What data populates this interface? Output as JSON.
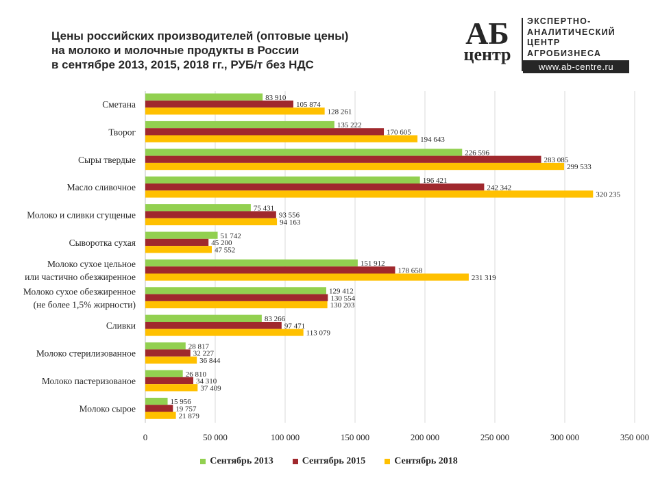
{
  "title_lines": [
    "Цены российских производителей (оптовые цены)",
    "на молоко и молочные продукты в России",
    "в сентябре 2013, 2015, 2018 гг., РУБ/т без НДС"
  ],
  "logo": {
    "mark_top": "АБ",
    "mark_bottom": "центр",
    "text_lines": [
      "ЭКСПЕРТНО-",
      "АНАЛИТИЧЕСКИЙ",
      "ЦЕНТР",
      "АГРОБИЗНЕСА"
    ],
    "url": "www.ab-centre.ru"
  },
  "chart_data": {
    "type": "bar",
    "orientation": "horizontal",
    "title": "Цены российских производителей (оптовые цены) на молоко и молочные продукты в России в сентябре 2013, 2015, 2018 гг., РУБ/т без НДС",
    "categories": [
      [
        "Сметана"
      ],
      [
        "Творог"
      ],
      [
        "Сыры твердые"
      ],
      [
        "Масло сливочное"
      ],
      [
        "Молоко и сливки сгущеные"
      ],
      [
        "Сыворотка сухая"
      ],
      [
        "Молоко сухое цельное",
        "или частично обезжиренное"
      ],
      [
        "Молоко сухое обезжиренное",
        "(не более 1,5% жирности)"
      ],
      [
        "Сливки"
      ],
      [
        "Молоко стерилизованное"
      ],
      [
        "Молоко пастеризованое"
      ],
      [
        "Молоко сырое"
      ]
    ],
    "series": [
      {
        "name": "Сентябрь 2013",
        "color": "#92d050",
        "values": [
          83910,
          135222,
          226596,
          196421,
          75431,
          51742,
          151912,
          129412,
          83266,
          28817,
          26810,
          15956
        ],
        "labels": [
          "83 910",
          "135 222",
          "226 596",
          "196 421",
          "75 431",
          "51 742",
          "151 912",
          "129 412",
          "83 266",
          "28 817",
          "26 810",
          "15 956"
        ]
      },
      {
        "name": "Сентябрь 2015",
        "color": "#a0282d",
        "values": [
          105874,
          170605,
          283085,
          242342,
          93556,
          45200,
          178658,
          130554,
          97471,
          32227,
          34310,
          19757
        ],
        "labels": [
          "105 874",
          "170 605",
          "283 085",
          "242 342",
          "93 556",
          "45 200",
          "178 658",
          "130 554",
          "97 471",
          "32 227",
          "34 310",
          "19 757"
        ]
      },
      {
        "name": "Сентябрь 2018",
        "color": "#ffc000",
        "values": [
          128261,
          194643,
          299533,
          320235,
          94163,
          47552,
          231319,
          130203,
          113079,
          36844,
          37409,
          21879
        ],
        "labels": [
          "128 261",
          "194 643",
          "299 533",
          "320 235",
          "94 163",
          "47 552",
          "231 319",
          "130 203",
          "113 079",
          "36 844",
          "37 409",
          "21 879"
        ]
      }
    ],
    "xlim": [
      0,
      350000
    ],
    "xticks": [
      0,
      50000,
      100000,
      150000,
      200000,
      250000,
      300000,
      350000
    ],
    "xtick_labels": [
      "0",
      "50 000",
      "100 000",
      "150 000",
      "200 000",
      "250 000",
      "300 000",
      "350 000"
    ],
    "grid": true,
    "legend_position": "bottom"
  }
}
